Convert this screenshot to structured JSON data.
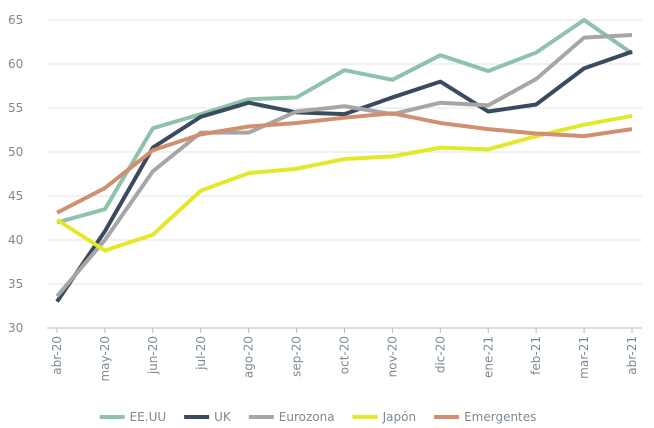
{
  "chart_data": {
    "type": "line",
    "categories": [
      "abr-20",
      "may-20",
      "jun-20",
      "jul-20",
      "ago-20",
      "sep-20",
      "oct-20",
      "nov-20",
      "dic-20",
      "ene-21",
      "feb-21",
      "mar-21",
      "abr-21"
    ],
    "series": [
      {
        "name": "EE.UU",
        "color": "#8fc2ab",
        "values": [
          42,
          43.5,
          52.7,
          54.3,
          56,
          56.2,
          59.3,
          58.2,
          61,
          59.2,
          61.3,
          65,
          61.2
        ]
      },
      {
        "name": "UK",
        "color": "#3a4a5f",
        "values": [
          33,
          41,
          50.5,
          54,
          55.6,
          54.5,
          54.3,
          56.2,
          58,
          54.6,
          55.4,
          59.5,
          61.4
        ]
      },
      {
        "name": "Eurozona",
        "color": "#a6a6a6",
        "values": [
          33.6,
          40,
          47.8,
          52.2,
          52.2,
          54.6,
          55.2,
          54.3,
          55.6,
          55.3,
          58.3,
          63,
          63.3
        ]
      },
      {
        "name": "Japón",
        "color": "#e3e82a",
        "values": [
          42.3,
          38.8,
          40.6,
          45.6,
          47.6,
          48.1,
          49.2,
          49.5,
          50.5,
          50.3,
          51.8,
          53.1,
          54.1
        ]
      },
      {
        "name": "Emergentes",
        "color": "#d09070",
        "values": [
          43.1,
          45.9,
          50.2,
          52,
          52.9,
          53.3,
          53.9,
          54.4,
          53.3,
          52.6,
          52.1,
          51.8,
          52.6
        ]
      }
    ],
    "ylim": [
      30,
      65
    ],
    "yticks": [
      30,
      35,
      40,
      45,
      50,
      55,
      60,
      65
    ],
    "grid": true,
    "legend": "bottom"
  }
}
